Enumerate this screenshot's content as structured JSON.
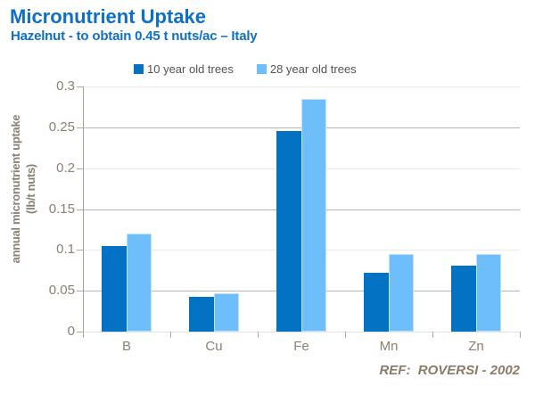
{
  "header": {
    "title": "Micronutrient Uptake",
    "subtitle": "Hazelnut - to obtain 0.45 t nuts/ac – Italy"
  },
  "chart_data": {
    "type": "bar",
    "title": "Micronutrient Uptake",
    "subtitle": "Hazelnut - to obtain 0.45 t nuts/ac – Italy",
    "categories": [
      "B",
      "Cu",
      "Fe",
      "Mn",
      "Zn"
    ],
    "series": [
      {
        "name": "10 year old trees",
        "color": "#0372C2",
        "values": [
          0.105,
          0.042,
          0.245,
          0.072,
          0.081
        ]
      },
      {
        "name": "28 year old trees",
        "color": "#6DBEFB",
        "values": [
          0.12,
          0.047,
          0.285,
          0.095,
          0.095
        ]
      }
    ],
    "ylabel_line1": "annual micronutrient uptake",
    "ylabel_line2": "(lb/t nuts)",
    "xlabel": "",
    "ylim": [
      0,
      0.3
    ],
    "yticks": [
      {
        "value": 0,
        "label": "0"
      },
      {
        "value": 0.05,
        "label": "0.05"
      },
      {
        "value": 0.1,
        "label": "0.1"
      },
      {
        "value": 0.15,
        "label": "0.15"
      },
      {
        "value": 0.2,
        "label": "0.2"
      },
      {
        "value": 0.25,
        "label": "0.25"
      },
      {
        "value": 0.3,
        "label": "0.3"
      }
    ],
    "grid": "horizontal",
    "legend_position": "top"
  },
  "footer": {
    "reference": "REF:  ROVERSI - 2002"
  },
  "colors": {
    "title_blue": "#0F6FC6",
    "series1_dark_blue": "#0372C2",
    "series2_light_blue": "#6DBEFB",
    "axis_text": "#8A8173",
    "legend_text": "#555250",
    "grid_light": "#EBEBE3",
    "grid_dark": "#BDB5AB",
    "axis_line": "#A89F93",
    "baseline": "#E2E2DA",
    "ref_text": "#8A7A68"
  }
}
